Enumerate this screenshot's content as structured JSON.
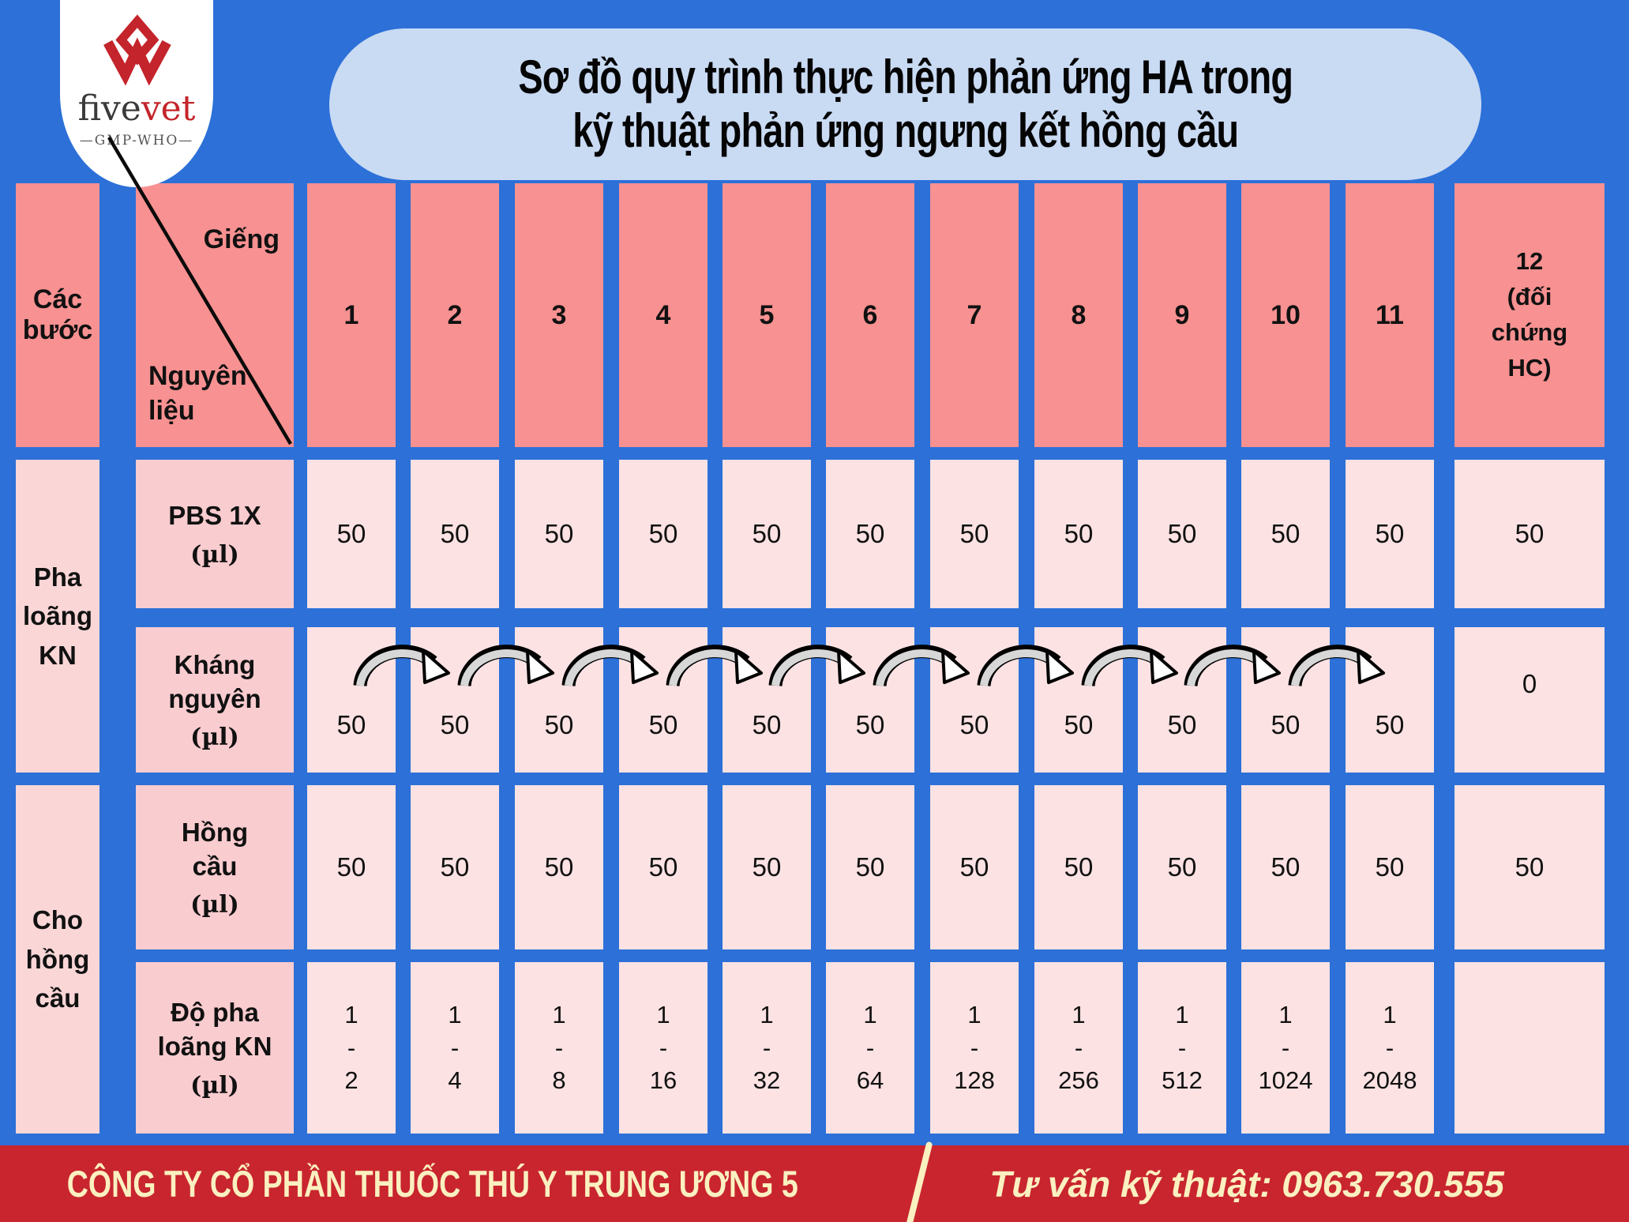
{
  "page": {
    "background": "#2C70D8"
  },
  "logo": {
    "brand_five": "five",
    "brand_vet": "vet",
    "tagline": "—GMP-WHO—",
    "mark_color": "#C4242B"
  },
  "title": {
    "line1": "Sơ đồ quy trình thực hiện phản ứng HA trong",
    "line2": "kỹ thuật phản ứng ngưng kết hồng cầu",
    "bg": "#C9DAF3"
  },
  "table": {
    "corner": {
      "steps": "Các bước",
      "top_right": "Giếng",
      "bottom_left": "Nguyên liệu"
    },
    "well_headers": [
      "1",
      "2",
      "3",
      "4",
      "5",
      "6",
      "7",
      "8",
      "9",
      "10",
      "11"
    ],
    "control_header": "12\n(đối\nchứng\nHC)",
    "groups": [
      {
        "label": "Pha\nloãng\nKN"
      },
      {
        "label": "Cho\nhồng\ncầu"
      }
    ],
    "rows": [
      {
        "label": "PBS 1X",
        "unit": "(µl)",
        "has_arrows": false,
        "values": [
          "50",
          "50",
          "50",
          "50",
          "50",
          "50",
          "50",
          "50",
          "50",
          "50",
          "50",
          "50"
        ]
      },
      {
        "label": "Kháng\nnguyên",
        "unit": "(µl)",
        "has_arrows": true,
        "values": [
          "50",
          "50",
          "50",
          "50",
          "50",
          "50",
          "50",
          "50",
          "50",
          "50",
          "50",
          "0"
        ]
      },
      {
        "label": "Hồng\ncầu",
        "unit": "(µl)",
        "has_arrows": false,
        "values": [
          "50",
          "50",
          "50",
          "50",
          "50",
          "50",
          "50",
          "50",
          "50",
          "50",
          "50",
          "50"
        ]
      },
      {
        "label": "Độ pha\nloãng KN",
        "unit": "(µl)",
        "has_arrows": false,
        "values": [
          "1\n-\n2",
          "1\n-\n4",
          "1\n-\n8",
          "1\n-\n16",
          "1\n-\n32",
          "1\n-\n64",
          "1\n-\n128",
          "1\n-\n256",
          "1\n-\n512",
          "1\n-\n1024",
          "1\n-\n2048",
          ""
        ]
      }
    ],
    "colors": {
      "header": "#F89191",
      "label_col": "#F9CCCF",
      "group_col": "#FAD6D7",
      "data_cell": "#FCE2E3"
    }
  },
  "footer": {
    "company": "CÔNG TY CỔ PHẦN THUỐC THÚ Y TRUNG ƯƠNG 5",
    "support": "Tư vấn kỹ thuật: 0963.730.555",
    "bg": "#C8252F",
    "text_color": "#FAF0C0"
  }
}
